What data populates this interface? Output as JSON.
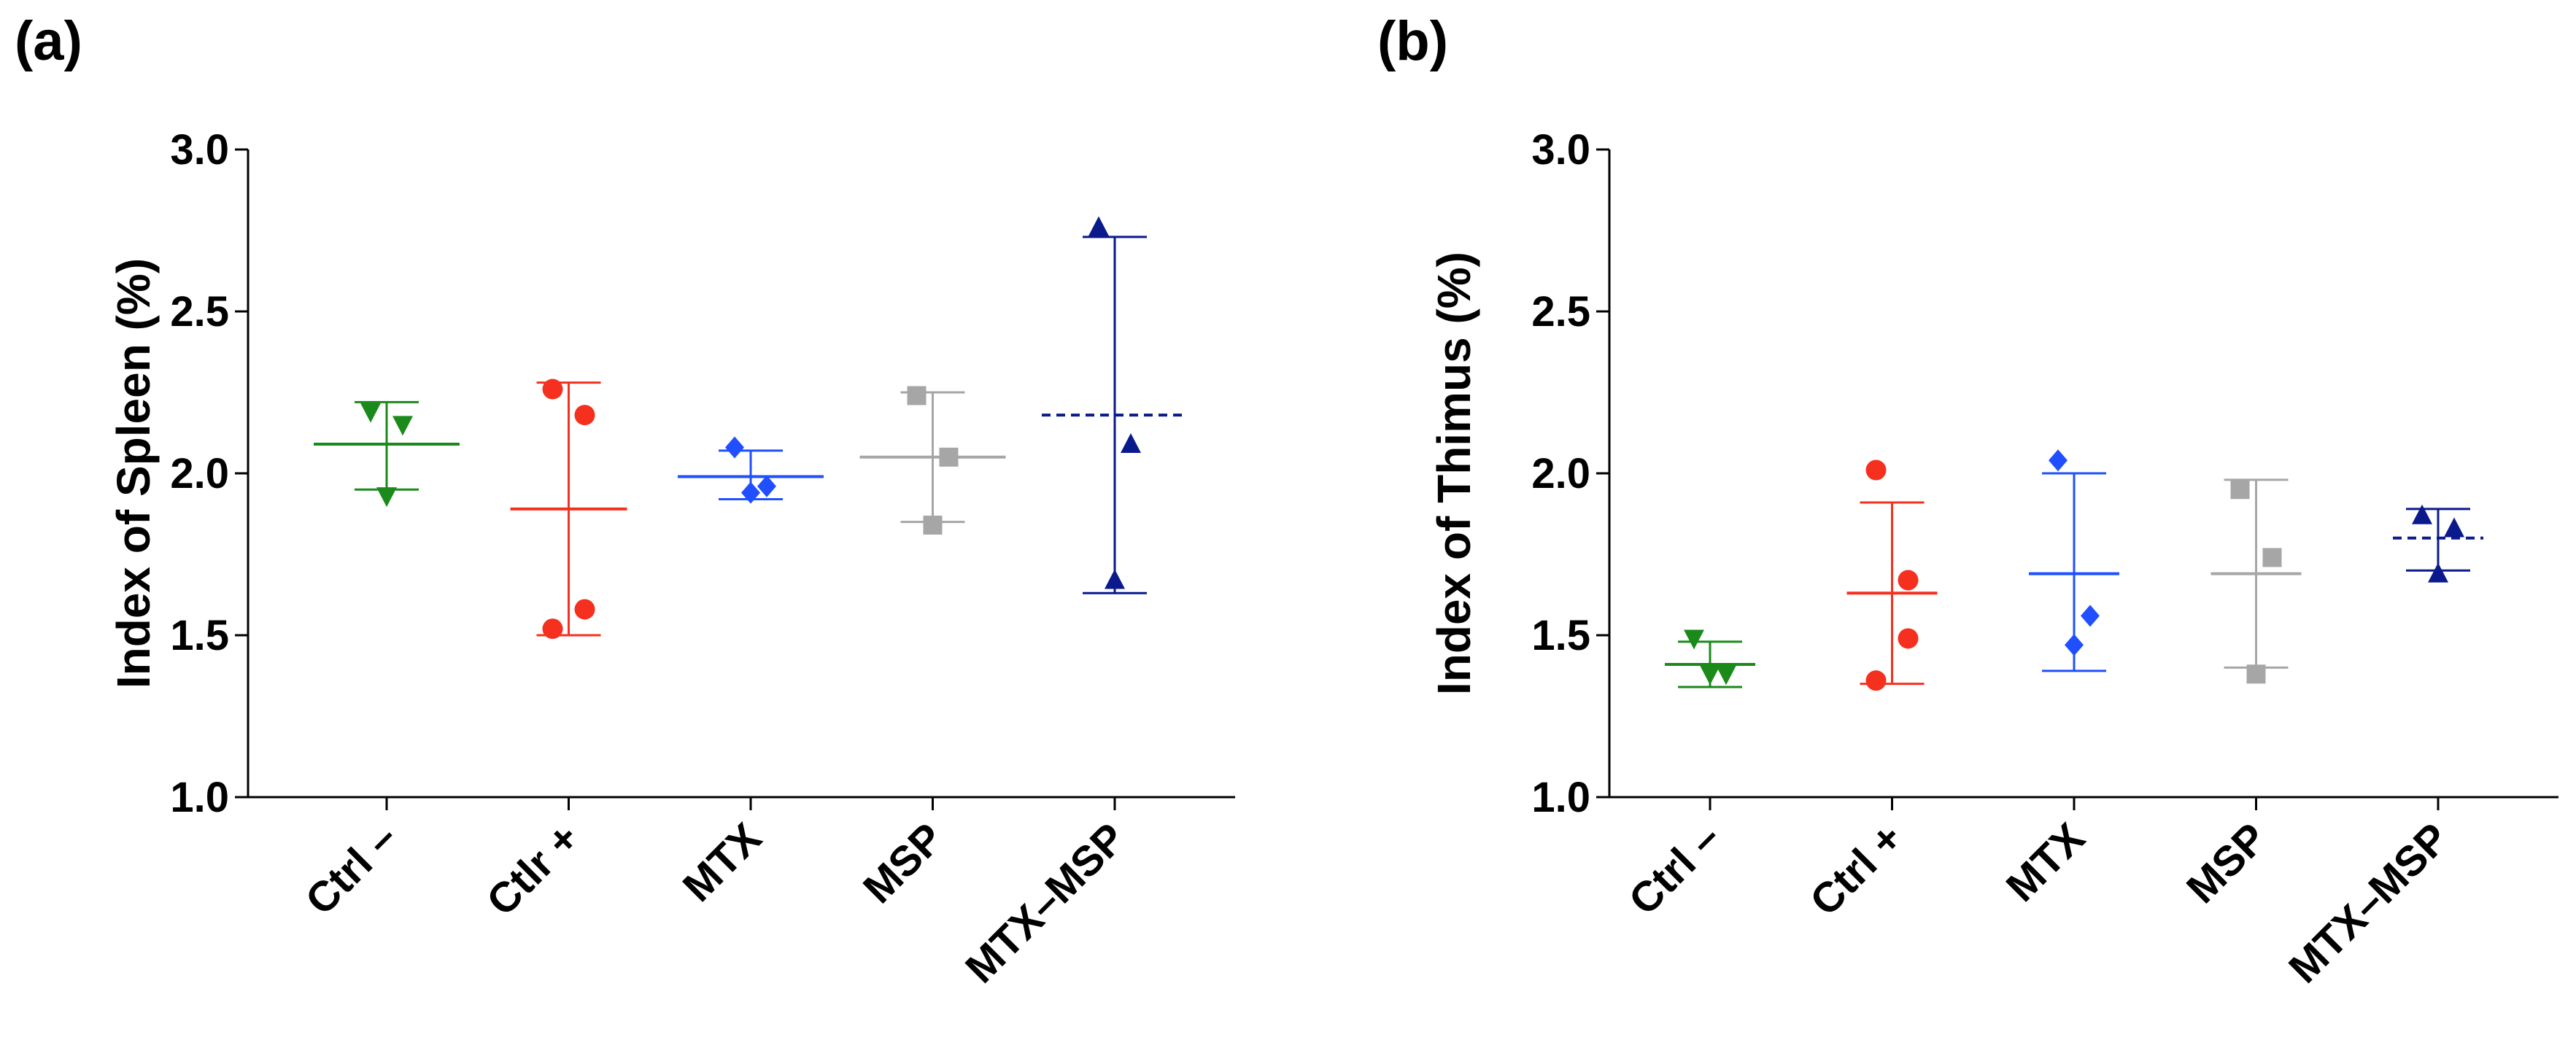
{
  "figure": {
    "panels": [
      {
        "label": "(a)"
      },
      {
        "label": "(b)"
      }
    ]
  },
  "chart_data": [
    {
      "type": "scatter",
      "panel": "(a)",
      "title": "",
      "xlabel": "",
      "ylabel": "Index of Spleen (%)",
      "ylim": [
        1.0,
        3.0
      ],
      "yticks": [
        "1.0",
        "1.5",
        "2.0",
        "2.5",
        "3.0"
      ],
      "grid": false,
      "legend": "none",
      "groups": [
        {
          "category": "Ctrl –",
          "color": "#1a8a1a",
          "marker": "triangle-down",
          "values": [
            2.19,
            2.15,
            1.93
          ],
          "mean": 2.09,
          "sd_low": 1.95,
          "sd_high": 2.22,
          "mean_style": "solid"
        },
        {
          "category": "Ctlr +",
          "color": "#f5301e",
          "marker": "circle",
          "values": [
            2.26,
            2.18,
            1.58,
            1.52
          ],
          "mean": 1.89,
          "sd_low": 1.5,
          "sd_high": 2.28,
          "mean_style": "solid"
        },
        {
          "category": "MTX",
          "color": "#1f4fff",
          "marker": "diamond",
          "values": [
            2.08,
            1.96,
            1.94
          ],
          "mean": 1.99,
          "sd_low": 1.92,
          "sd_high": 2.07,
          "mean_style": "solid"
        },
        {
          "category": "MSP",
          "color": "#a6a6a6",
          "marker": "square",
          "values": [
            2.24,
            2.05,
            1.84
          ],
          "mean": 2.05,
          "sd_low": 1.85,
          "sd_high": 2.25,
          "mean_style": "solid"
        },
        {
          "category": "MTX–MSP",
          "color": "#0a1a8c",
          "marker": "triangle-up",
          "values": [
            2.76,
            2.09,
            1.67
          ],
          "mean": 2.18,
          "sd_low": 1.63,
          "sd_high": 2.73,
          "mean_style": "dashed"
        }
      ]
    },
    {
      "type": "scatter",
      "panel": "(b)",
      "title": "",
      "xlabel": "",
      "ylabel": "Index of Thimus (%)",
      "ylim": [
        1.0,
        3.0
      ],
      "yticks": [
        "1.0",
        "1.5",
        "2.0",
        "2.5",
        "3.0"
      ],
      "grid": false,
      "legend": "none",
      "groups": [
        {
          "category": "Ctrl –",
          "color": "#1a8a1a",
          "marker": "triangle-down",
          "values": [
            1.49,
            1.38,
            1.38
          ],
          "mean": 1.41,
          "sd_low": 1.34,
          "sd_high": 1.48,
          "mean_style": "solid"
        },
        {
          "category": "Ctrl +",
          "color": "#f5301e",
          "marker": "circle",
          "values": [
            2.01,
            1.67,
            1.49,
            1.36
          ],
          "mean": 1.63,
          "sd_low": 1.35,
          "sd_high": 1.91,
          "mean_style": "solid"
        },
        {
          "category": "MTX",
          "color": "#1f4fff",
          "marker": "diamond",
          "values": [
            2.04,
            1.56,
            1.47
          ],
          "mean": 1.69,
          "sd_low": 1.39,
          "sd_high": 2.0,
          "mean_style": "solid"
        },
        {
          "category": "MSP",
          "color": "#a6a6a6",
          "marker": "square",
          "values": [
            1.95,
            1.74,
            1.38
          ],
          "mean": 1.69,
          "sd_low": 1.4,
          "sd_high": 1.98,
          "mean_style": "solid"
        },
        {
          "category": "MTX–MSP",
          "color": "#0a1a8c",
          "marker": "triangle-up",
          "values": [
            1.87,
            1.83,
            1.69
          ],
          "mean": 1.8,
          "sd_low": 1.7,
          "sd_high": 1.89,
          "mean_style": "dashed"
        }
      ]
    }
  ]
}
